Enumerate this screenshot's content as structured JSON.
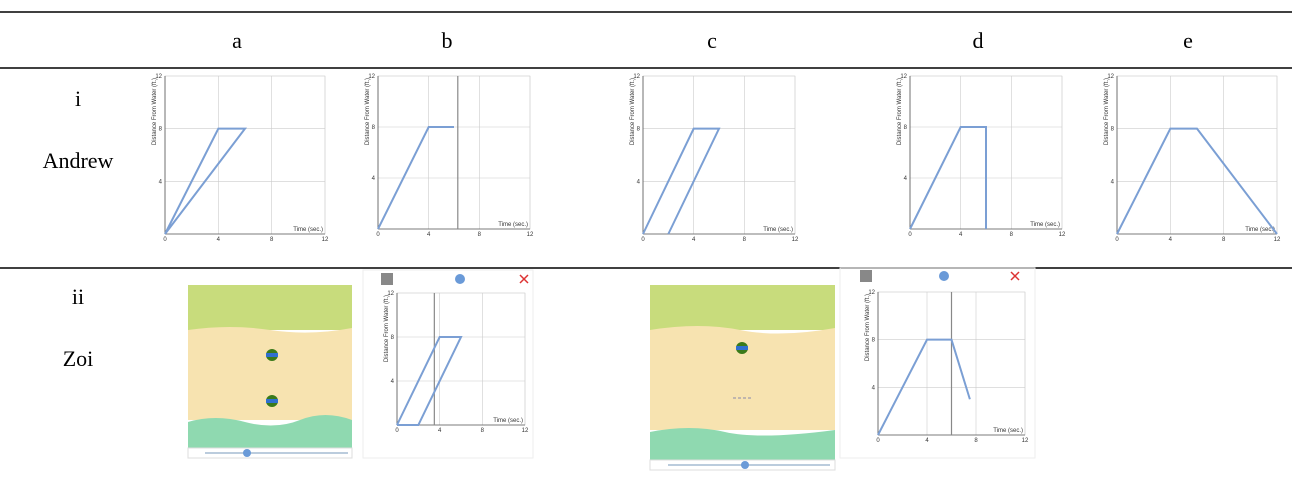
{
  "table": {
    "header": [
      "a",
      "b",
      "c",
      "d",
      "e"
    ],
    "rows": [
      {
        "label": "i",
        "name": "Andrew"
      },
      {
        "label": "ii",
        "name": "Zoi"
      }
    ]
  },
  "graphs": [
    {
      "xlabel": "Time (sec.)",
      "ylabel": "Distance From Water (ft.)",
      "xlim": [
        0,
        12
      ],
      "ylim": [
        0,
        12
      ],
      "xticks": [
        0,
        4,
        8,
        12
      ],
      "yticks": [
        4,
        8,
        12
      ],
      "x": [
        0,
        4,
        6,
        0
      ],
      "y": [
        0,
        8,
        8,
        0
      ]
    },
    {
      "xlabel": "Time (sec.)",
      "ylabel": "Distance From Water (ft.)",
      "xlim": [
        0,
        12
      ],
      "ylim": [
        0,
        12
      ],
      "xticks": [
        0,
        4,
        8,
        12
      ],
      "yticks": [
        4,
        8,
        12
      ],
      "x": [
        0,
        4,
        6
      ],
      "y": [
        0,
        8,
        8
      ],
      "cursor": 6.3
    },
    {
      "xlabel": "Time (sec.)",
      "ylabel": "Distance From Water (ft.)",
      "xlim": [
        0,
        12
      ],
      "ylim": [
        0,
        12
      ],
      "xticks": [
        0,
        4,
        8,
        12
      ],
      "yticks": [
        4,
        8,
        12
      ],
      "x": [
        0,
        4,
        6,
        2
      ],
      "y": [
        0,
        8,
        8,
        0
      ]
    },
    {
      "xlabel": "Time (sec.)",
      "ylabel": "Distance From Water (ft.)",
      "xlim": [
        0,
        12
      ],
      "ylim": [
        0,
        12
      ],
      "xticks": [
        0,
        4,
        8,
        12
      ],
      "yticks": [
        4,
        8,
        12
      ],
      "x": [
        0,
        4,
        6,
        6
      ],
      "y": [
        0,
        8,
        8,
        0
      ]
    },
    {
      "xlabel": "Time (sec.)",
      "ylabel": "Distance From Water (ft.)",
      "xlim": [
        0,
        12
      ],
      "ylim": [
        0,
        12
      ],
      "xticks": [
        0,
        4,
        8,
        12
      ],
      "yticks": [
        4,
        8,
        12
      ],
      "x": [
        0,
        4,
        6,
        12
      ],
      "y": [
        0,
        8,
        8,
        0
      ]
    },
    {
      "xlabel": "Time (sec.)",
      "ylabel": "Distance From Water (ft.)",
      "xlim": [
        0,
        12
      ],
      "ylim": [
        0,
        12
      ],
      "xticks": [
        0,
        4,
        8,
        12
      ],
      "yticks": [
        4,
        8,
        12
      ],
      "x": [
        0,
        4,
        6,
        2,
        0
      ],
      "y": [
        0,
        8,
        8,
        0,
        0
      ],
      "cursor": 3.5
    },
    {
      "xlabel": "Time (sec.)",
      "ylabel": "Distance From Water (ft.)",
      "xlim": [
        0,
        12
      ],
      "ylim": [
        0,
        12
      ],
      "xticks": [
        0,
        4,
        8,
        12
      ],
      "yticks": [
        4,
        8,
        12
      ],
      "x": [
        0,
        4,
        6,
        7.5
      ],
      "y": [
        0,
        8,
        8,
        3
      ],
      "cursor": 6
    }
  ]
}
